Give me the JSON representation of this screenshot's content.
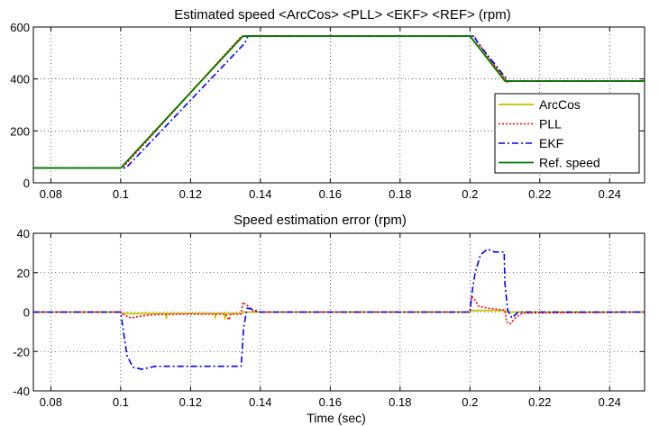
{
  "chart_data": [
    {
      "type": "line",
      "title": "Estimated speed <ArcCos> <PLL> <EKF> <REF>   (rpm)",
      "xlabel": "",
      "ylabel": "",
      "xlim": [
        0.075,
        0.25
      ],
      "ylim": [
        0,
        600
      ],
      "xticks": [
        0.08,
        0.1,
        0.12,
        0.14,
        0.16,
        0.18,
        0.2,
        0.22,
        0.24
      ],
      "yticks": [
        0,
        200,
        400,
        600
      ],
      "grid": true,
      "legend_position": "lower-right",
      "series": [
        {
          "name": "ArcCos",
          "color": "#c8c000",
          "style": "solid",
          "x": [
            0.075,
            0.1,
            0.1345,
            0.135,
            0.2,
            0.2105,
            0.25
          ],
          "y": [
            57,
            57,
            560,
            565,
            565,
            392,
            392
          ]
        },
        {
          "name": "PLL",
          "color": "#ff0000",
          "style": "dotted",
          "x": [
            0.075,
            0.1,
            0.1005,
            0.1345,
            0.1355,
            0.2,
            0.201,
            0.2105,
            0.2115,
            0.25
          ],
          "y": [
            57,
            57,
            57,
            563,
            566,
            565,
            565,
            388,
            391,
            392
          ]
        },
        {
          "name": "EKF",
          "color": "#0000ff",
          "style": "dashdot",
          "x": [
            0.075,
            0.1,
            0.1015,
            0.1355,
            0.1365,
            0.2,
            0.2012,
            0.2023,
            0.211,
            0.2125,
            0.25
          ],
          "y": [
            57,
            57,
            57,
            537,
            565,
            565,
            565,
            538,
            392,
            392,
            392
          ]
        },
        {
          "name": "Ref. speed",
          "color": "#007a00",
          "style": "solid",
          "x": [
            0.075,
            0.1,
            0.135,
            0.2,
            0.21,
            0.25
          ],
          "y": [
            57,
            57,
            565,
            565,
            392,
            392
          ]
        }
      ]
    },
    {
      "type": "line",
      "title": "Speed  estimation error  (rpm)",
      "xlabel": "Time  (sec)",
      "ylabel": "",
      "xlim": [
        0.075,
        0.25
      ],
      "ylim": [
        -40,
        40
      ],
      "xticks": [
        0.08,
        0.1,
        0.12,
        0.14,
        0.16,
        0.18,
        0.2,
        0.22,
        0.24
      ],
      "yticks": [
        -40,
        -20,
        0,
        20,
        40
      ],
      "grid": true,
      "series": [
        {
          "name": "ArcCos",
          "color": "#c8c000",
          "style": "solid",
          "x": [
            0.075,
            0.1,
            0.1005,
            0.113,
            0.1131,
            0.1132,
            0.127,
            0.1271,
            0.1272,
            0.1298,
            0.1299,
            0.13,
            0.1345,
            0.135,
            0.2,
            0.2005,
            0.21,
            0.2105,
            0.25
          ],
          "y": [
            0,
            0,
            -0.8,
            -0.8,
            -3.2,
            -0.8,
            -0.8,
            -3,
            -0.8,
            -0.8,
            -3.5,
            -0.8,
            -0.8,
            0,
            0,
            0.8,
            0.8,
            0,
            0
          ]
        },
        {
          "name": "PLL",
          "color": "#ff0000",
          "style": "dotted",
          "x": [
            0.075,
            0.1,
            0.101,
            0.103,
            0.106,
            0.11,
            0.12,
            0.13,
            0.131,
            0.1315,
            0.1345,
            0.135,
            0.1365,
            0.138,
            0.14,
            0.2,
            0.2005,
            0.2015,
            0.2025,
            0.205,
            0.21,
            0.2105,
            0.2115,
            0.213,
            0.215,
            0.25
          ],
          "y": [
            0,
            0,
            -1.5,
            -3,
            -2,
            -1.2,
            -1,
            -1,
            -4,
            -1,
            -1,
            5,
            3,
            0.5,
            0,
            0,
            8,
            6,
            3,
            2,
            1,
            -5,
            -6,
            -3,
            -0.5,
            0
          ]
        },
        {
          "name": "EKF",
          "color": "#0000ff",
          "style": "dashdot",
          "x": [
            0.075,
            0.1,
            0.1008,
            0.1018,
            0.1035,
            0.106,
            0.11,
            0.12,
            0.1345,
            0.1352,
            0.1362,
            0.1375,
            0.139,
            0.14,
            0.2,
            0.2006,
            0.2015,
            0.203,
            0.205,
            0.207,
            0.2098,
            0.21,
            0.2108,
            0.212,
            0.2138,
            0.215,
            0.25
          ],
          "y": [
            0,
            0,
            -10,
            -22,
            -28,
            -29,
            -27.5,
            -27.5,
            -27.5,
            -8,
            2,
            1.5,
            0.5,
            0,
            0,
            10,
            20,
            29,
            32,
            30.5,
            30.5,
            15,
            1,
            -3,
            0,
            0,
            0
          ]
        }
      ]
    }
  ]
}
